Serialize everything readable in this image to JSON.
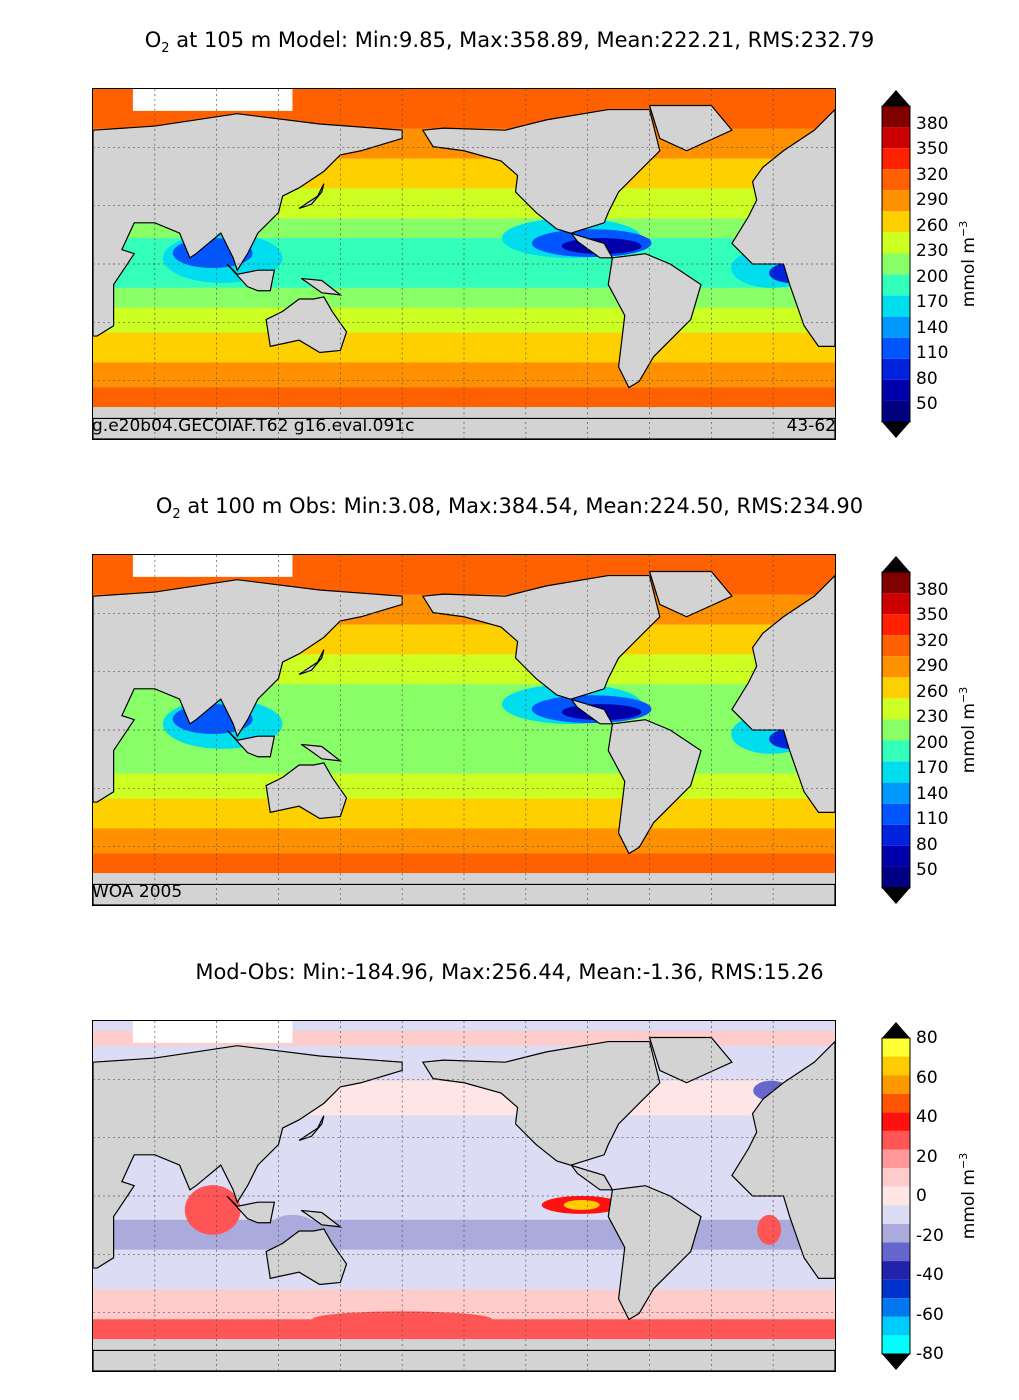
{
  "panels": [
    {
      "title_pre": "O",
      "title_sub": "2",
      "title_post": " at 105 m Model: Min:9.85, Max:358.89, Mean:222.21, RMS:232.79",
      "caption_left": "g.e20b04.GECOIAF.T62 g16.eval.091c",
      "caption_right": "43-62",
      "colorbar": {
        "ticks": [
          "380",
          "350",
          "320",
          "290",
          "260",
          "230",
          "200",
          "170",
          "140",
          "110",
          "80",
          "50"
        ],
        "unit_base": "mmol m",
        "unit_exp": "−3",
        "colors": [
          "#800000",
          "#cc0000",
          "#ff2000",
          "#ff6000",
          "#ff9000",
          "#ffd000",
          "#ccff22",
          "#88ff66",
          "#33ffbb",
          "#00ddee",
          "#0099ff",
          "#0055ff",
          "#0022dd",
          "#0000aa",
          "#000080"
        ],
        "over_color": "#000000",
        "under_color": "#000000"
      },
      "field": "model"
    },
    {
      "title_pre": "O",
      "title_sub": "2",
      "title_post": " at 100 m Obs: Min:3.08, Max:384.54, Mean:224.50, RMS:234.90",
      "caption_left": "WOA 2005",
      "caption_right": "",
      "colorbar": {
        "ticks": [
          "380",
          "350",
          "320",
          "290",
          "260",
          "230",
          "200",
          "170",
          "140",
          "110",
          "80",
          "50"
        ],
        "unit_base": "mmol m",
        "unit_exp": "−3",
        "colors": [
          "#800000",
          "#cc0000",
          "#ff2000",
          "#ff6000",
          "#ff9000",
          "#ffd000",
          "#ccff22",
          "#88ff66",
          "#33ffbb",
          "#00ddee",
          "#0099ff",
          "#0055ff",
          "#0022dd",
          "#0000aa",
          "#000080"
        ],
        "over_color": "#000000",
        "under_color": "#000000"
      },
      "field": "obs"
    },
    {
      "title_pre": "",
      "title_sub": "",
      "title_post": "Mod-Obs: Min:-184.96, Max:256.44, Mean:-1.36, RMS:15.26",
      "caption_left": "",
      "caption_right": "",
      "colorbar": {
        "ticks": [
          "80",
          "60",
          "40",
          "20",
          "0",
          "-20",
          "-40",
          "-60",
          "-80"
        ],
        "unit_base": "mmol m",
        "unit_exp": "−3",
        "colors": [
          "#ffff33",
          "#ffcc00",
          "#ff9900",
          "#ff5500",
          "#ff1111",
          "#ff5555",
          "#ff9999",
          "#ffcccc",
          "#ffe6e6",
          "#dcdcf4",
          "#aaaadd",
          "#6666cc",
          "#2222aa",
          "#0033cc",
          "#0077ee",
          "#00ccff",
          "#00ffff"
        ],
        "over_color": "#000000",
        "under_color": "#000000"
      },
      "field": "diff"
    }
  ]
}
